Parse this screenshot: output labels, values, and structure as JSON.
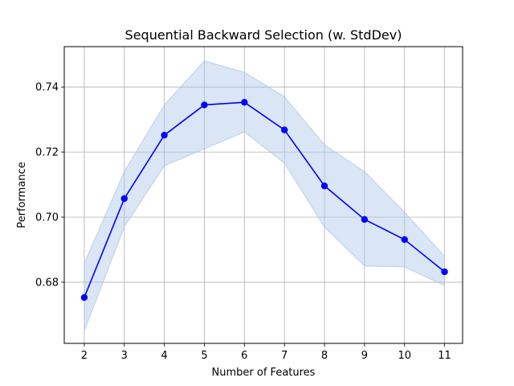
{
  "chart_data": {
    "type": "line",
    "title": "Sequential Backward Selection (w. StdDev)",
    "xlabel": "Number of Features",
    "ylabel": "Performance",
    "x": [
      2,
      3,
      4,
      5,
      6,
      7,
      8,
      9,
      10,
      11
    ],
    "series": [
      {
        "values": [
          0.6753,
          0.7057,
          0.7252,
          0.7345,
          0.7353,
          0.7268,
          0.7096,
          0.6993,
          0.6931,
          0.6832
        ],
        "color": "#0000ff"
      }
    ],
    "band": {
      "upper": [
        0.6858,
        0.714,
        0.7345,
        0.748,
        0.7445,
        0.737,
        0.7222,
        0.714,
        0.7015,
        0.688
      ],
      "lower": [
        0.665,
        0.697,
        0.7158,
        0.721,
        0.7262,
        0.7166,
        0.697,
        0.685,
        0.6847,
        0.679
      ],
      "color": "#aec7e8"
    },
    "xticks": [
      "2",
      "3",
      "4",
      "5",
      "6",
      "7",
      "8",
      "9",
      "10",
      "11"
    ],
    "yticks": [
      "0.68",
      "0.70",
      "0.72",
      "0.74"
    ],
    "ytick_values": [
      0.68,
      0.7,
      0.72,
      0.74
    ],
    "xlim": [
      1.5,
      11.45
    ],
    "ylim": [
      0.6612,
      0.7524
    ],
    "grid": true
  }
}
